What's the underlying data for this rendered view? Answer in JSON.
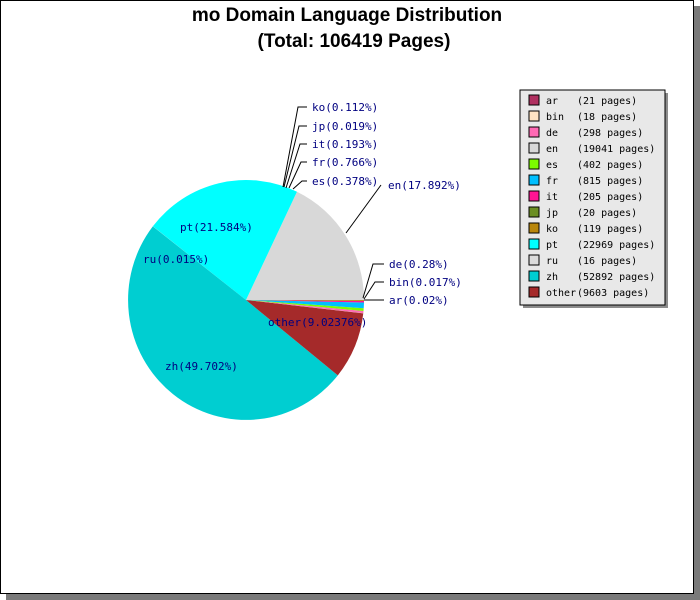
{
  "chart_data": {
    "type": "pie",
    "title": "mo Domain Language Distribution",
    "subtitle": "(Total: 106419 Pages)",
    "slices": [
      {
        "key": "en",
        "label": "en(17.892%)",
        "value": 17.892,
        "color": "#d8d8d8"
      },
      {
        "key": "pt",
        "label": "pt(21.584%)",
        "value": 21.584,
        "color": "#00ffff"
      },
      {
        "key": "ru",
        "label": "ru(0.015%)",
        "value": 0.015,
        "color": "#dcdcdc"
      },
      {
        "key": "zh",
        "label": "zh(49.702%)",
        "value": 49.702,
        "color": "#00ced1"
      },
      {
        "key": "other",
        "label": "other(9.02376%)",
        "value": 9.02376,
        "color": "#a52a2a"
      },
      {
        "key": "ar",
        "label": "ar(0.02%)",
        "value": 0.02,
        "color": "#b03060"
      },
      {
        "key": "bin",
        "label": "bin(0.017%)",
        "value": 0.017,
        "color": "#ffe4c4"
      },
      {
        "key": "de",
        "label": "de(0.28%)",
        "value": 0.28,
        "color": "#ff69b4"
      },
      {
        "key": "es",
        "label": "es(0.378%)",
        "value": 0.378,
        "color": "#7cfc00"
      },
      {
        "key": "fr",
        "label": "fr(0.766%)",
        "value": 0.766,
        "color": "#00bfff"
      },
      {
        "key": "it",
        "label": "it(0.193%)",
        "value": 0.193,
        "color": "#ff1493"
      },
      {
        "key": "jp",
        "label": "jp(0.019%)",
        "value": 0.019,
        "color": "#6b8e23"
      },
      {
        "key": "ko",
        "label": "ko(0.112%)",
        "value": 0.112,
        "color": "#b8860b"
      }
    ],
    "legend": {
      "placement": "top-right",
      "entries": [
        {
          "key": "ar",
          "pages": "(21 pages)",
          "color": "#b03060"
        },
        {
          "key": "bin",
          "pages": "(18 pages)",
          "color": "#ffe4c4"
        },
        {
          "key": "de",
          "pages": "(298 pages)",
          "color": "#ff69b4"
        },
        {
          "key": "en",
          "pages": "(19041 pages)",
          "color": "#d8d8d8"
        },
        {
          "key": "es",
          "pages": "(402 pages)",
          "color": "#7cfc00"
        },
        {
          "key": "fr",
          "pages": "(815 pages)",
          "color": "#00bfff"
        },
        {
          "key": "it",
          "pages": "(205 pages)",
          "color": "#ff1493"
        },
        {
          "key": "jp",
          "pages": "(20 pages)",
          "color": "#6b8e23"
        },
        {
          "key": "ko",
          "pages": "(119 pages)",
          "color": "#b8860b"
        },
        {
          "key": "pt",
          "pages": "(22969 pages)",
          "color": "#00ffff"
        },
        {
          "key": "ru",
          "pages": "(16 pages)",
          "color": "#dcdcdc"
        },
        {
          "key": "zh",
          "pages": "(52892 pages)",
          "color": "#00ced1"
        },
        {
          "key": "other",
          "pages": "(9603 pages)",
          "color": "#a52a2a"
        }
      ]
    }
  }
}
